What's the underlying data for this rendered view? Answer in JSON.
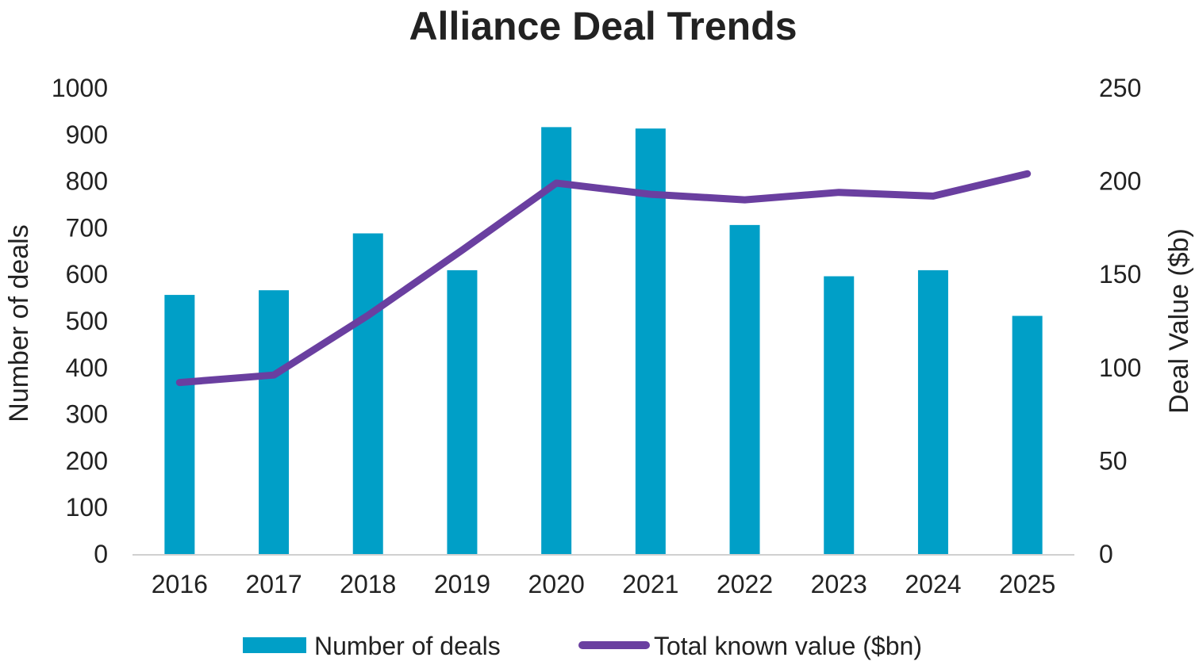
{
  "chart_data": {
    "type": "bar",
    "title": "Alliance Deal Trends",
    "categories": [
      "2016",
      "2017",
      "2018",
      "2019",
      "2020",
      "2021",
      "2022",
      "2023",
      "2024",
      "2025"
    ],
    "series": [
      {
        "name": "Number of deals",
        "type": "bar",
        "axis": "left",
        "color": "#009FC7",
        "values": [
          556,
          566,
          688,
          609,
          916,
          913,
          706,
          596,
          609,
          511
        ]
      },
      {
        "name": "Total known value ($bn)",
        "type": "line",
        "axis": "right",
        "color": "#6A3FA0",
        "values": [
          92,
          96,
          128,
          163,
          199,
          193,
          190,
          194,
          192,
          204
        ]
      }
    ],
    "y_left": {
      "label": "Number of deals",
      "range": [
        0,
        1000
      ],
      "ticks": [
        0,
        100,
        200,
        300,
        400,
        500,
        600,
        700,
        800,
        900,
        1000
      ]
    },
    "y_right": {
      "label": "Deal Value ($b)",
      "range": [
        0,
        250
      ],
      "ticks": [
        0,
        50,
        100,
        150,
        200,
        250
      ]
    },
    "grid": false,
    "legend_position": "bottom"
  }
}
